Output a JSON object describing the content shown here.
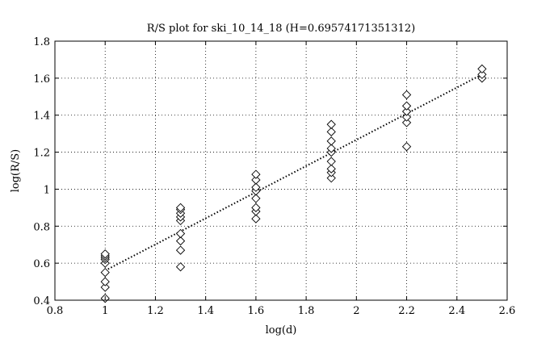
{
  "chart_data": {
    "type": "scatter",
    "title": "R/S plot for ski_10_14_18 (H=0.69574171351312)",
    "xlabel": "log(d)",
    "ylabel": "log(R/S)",
    "xlim": [
      0.8,
      2.6
    ],
    "ylim": [
      0.4,
      1.8
    ],
    "x_ticks": [
      0.8,
      1,
      1.2,
      1.4,
      1.6,
      1.8,
      2,
      2.2,
      2.4,
      2.6
    ],
    "y_ticks": [
      0.4,
      0.6,
      0.8,
      1,
      1.2,
      1.4,
      1.6,
      1.8
    ],
    "x_tick_labels": [
      "0.8",
      "1",
      "1.2",
      "1.4",
      "1.6",
      "1.8",
      "2",
      "2.2",
      "2.4",
      "2.6"
    ],
    "y_tick_labels": [
      "0.4",
      "0.6",
      "0.8",
      "1",
      "1.2",
      "1.4",
      "1.6",
      "1.8"
    ],
    "grid": true,
    "marker": "diamond",
    "points": [
      {
        "x": 1.0,
        "y": 0.41
      },
      {
        "x": 1.0,
        "y": 0.47
      },
      {
        "x": 1.0,
        "y": 0.5
      },
      {
        "x": 1.0,
        "y": 0.55
      },
      {
        "x": 1.0,
        "y": 0.6
      },
      {
        "x": 1.0,
        "y": 0.62
      },
      {
        "x": 1.0,
        "y": 0.63
      },
      {
        "x": 1.0,
        "y": 0.64
      },
      {
        "x": 1.0,
        "y": 0.65
      },
      {
        "x": 1.3,
        "y": 0.58
      },
      {
        "x": 1.3,
        "y": 0.67
      },
      {
        "x": 1.3,
        "y": 0.72
      },
      {
        "x": 1.3,
        "y": 0.76
      },
      {
        "x": 1.3,
        "y": 0.83
      },
      {
        "x": 1.3,
        "y": 0.85
      },
      {
        "x": 1.3,
        "y": 0.87
      },
      {
        "x": 1.3,
        "y": 0.89
      },
      {
        "x": 1.3,
        "y": 0.9
      },
      {
        "x": 1.6,
        "y": 0.84
      },
      {
        "x": 1.6,
        "y": 0.88
      },
      {
        "x": 1.6,
        "y": 0.9
      },
      {
        "x": 1.6,
        "y": 0.95
      },
      {
        "x": 1.6,
        "y": 0.99
      },
      {
        "x": 1.6,
        "y": 1.01
      },
      {
        "x": 1.6,
        "y": 1.05
      },
      {
        "x": 1.6,
        "y": 1.08
      },
      {
        "x": 1.9,
        "y": 1.06
      },
      {
        "x": 1.9,
        "y": 1.09
      },
      {
        "x": 1.9,
        "y": 1.11
      },
      {
        "x": 1.9,
        "y": 1.15
      },
      {
        "x": 1.9,
        "y": 1.2
      },
      {
        "x": 1.9,
        "y": 1.22
      },
      {
        "x": 1.9,
        "y": 1.26
      },
      {
        "x": 1.9,
        "y": 1.31
      },
      {
        "x": 1.9,
        "y": 1.35
      },
      {
        "x": 2.2,
        "y": 1.23
      },
      {
        "x": 2.2,
        "y": 1.36
      },
      {
        "x": 2.2,
        "y": 1.39
      },
      {
        "x": 2.2,
        "y": 1.42
      },
      {
        "x": 2.2,
        "y": 1.45
      },
      {
        "x": 2.2,
        "y": 1.51
      },
      {
        "x": 2.5,
        "y": 1.6
      },
      {
        "x": 2.5,
        "y": 1.62
      },
      {
        "x": 2.5,
        "y": 1.65
      }
    ],
    "fit_line": {
      "x": [
        1.0,
        2.5
      ],
      "y": [
        0.56,
        1.62
      ],
      "style": "dotted"
    }
  }
}
